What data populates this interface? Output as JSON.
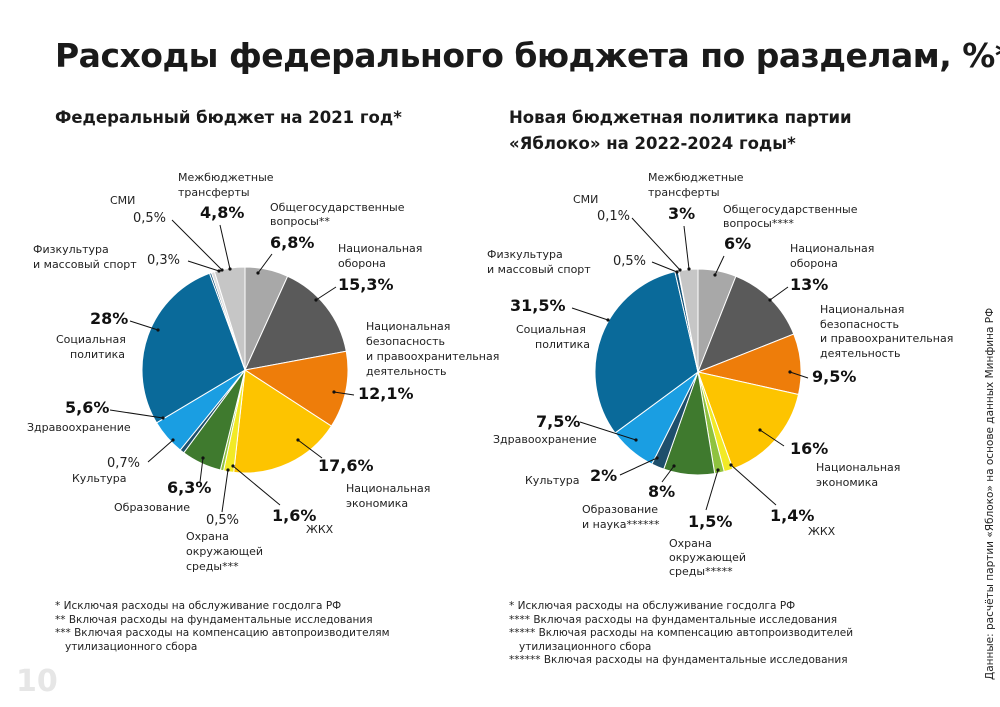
{
  "title": "Расходы федерального бюджета по разделам, %*",
  "page_number": "10",
  "source_note": "Данные: расчёты партии «Яблоко» на основе данных Минфина РФ",
  "charts": [
    {
      "subtitle_lines": [
        "Федеральный бюджет на 2021 год*"
      ],
      "footnotes": [
        "* Исключая расходы на обслуживание госдолга РФ",
        "** Включая расходы на фундаментальные исследования",
        "*** Включая расходы на компенсацию автопроизводителям",
        "утилизационного сбора"
      ]
    },
    {
      "subtitle_lines": [
        "Новая бюджетная политика партии",
        "«Яблоко» на 2022-2024 годы*"
      ],
      "footnotes": [
        "* Исключая расходы на обслуживание госдолга РФ",
        "**** Включая расходы на фундаментальные исследования",
        "***** Включая расходы на компенсацию автопроизводителей",
        "утилизационного сбора",
        "****** Включая расходы на фундаментальные исследования"
      ]
    }
  ],
  "chart_data": [
    {
      "type": "pie",
      "title": "Федеральный бюджет на 2021 год*",
      "slices": [
        {
          "label": "Общегосударственные вопросы**",
          "value": 6.8,
          "value_label": "6,8%",
          "color": "#a8a8a8"
        },
        {
          "label": "Национальная оборона",
          "value": 15.3,
          "value_label": "15,3%",
          "color": "#5a5a5a"
        },
        {
          "label": "Национальная безопасность и правоохранительная деятельность",
          "value": 12.1,
          "value_label": "12,1%",
          "color": "#ee7d0a"
        },
        {
          "label": "Национальная экономика",
          "value": 17.6,
          "value_label": "17,6%",
          "color": "#fdc400"
        },
        {
          "label": "ЖКХ",
          "value": 1.6,
          "value_label": "1,6%",
          "color": "#f2ea26"
        },
        {
          "label": "Охрана окружающей среды***",
          "value": 0.5,
          "value_label": "0,5%",
          "color": "#8fc23f"
        },
        {
          "label": "Образование",
          "value": 6.3,
          "value_label": "6,3%",
          "color": "#3f7a2e"
        },
        {
          "label": "Культура",
          "value": 0.7,
          "value_label": "0,7%",
          "color": "#1e4f6c"
        },
        {
          "label": "Здравоохранение",
          "value": 5.6,
          "value_label": "5,6%",
          "color": "#1a9ee2"
        },
        {
          "label": "Социальная политика",
          "value": 28,
          "value_label": "28%",
          "color": "#0a6a9a"
        },
        {
          "label": "Физкультура и массовый спорт",
          "value": 0.3,
          "value_label": "0,3%",
          "color": "#0d4f77"
        },
        {
          "label": "СМИ",
          "value": 0.5,
          "value_label": "0,5%",
          "color": "#dedede"
        },
        {
          "label": "Межбюджетные трансферты",
          "value": 4.8,
          "value_label": "4,8%",
          "color": "#c6c6c6"
        }
      ]
    },
    {
      "type": "pie",
      "title": "Новая бюджетная политика партии «Яблоко» на 2022-2024 годы*",
      "slices": [
        {
          "label": "Общегосударственные вопросы****",
          "value": 6,
          "value_label": "6%",
          "color": "#a8a8a8"
        },
        {
          "label": "Национальная оборона",
          "value": 13,
          "value_label": "13%",
          "color": "#5a5a5a"
        },
        {
          "label": "Национальная безопасность и правоохранительная деятельность",
          "value": 9.5,
          "value_label": "9,5%",
          "color": "#ee7d0a"
        },
        {
          "label": "Национальная экономика",
          "value": 16,
          "value_label": "16%",
          "color": "#fdc400"
        },
        {
          "label": "ЖКХ",
          "value": 1.4,
          "value_label": "1,4%",
          "color": "#f2ea26"
        },
        {
          "label": "Охрана окружающей среды*****",
          "value": 1.5,
          "value_label": "1,5%",
          "color": "#8fc23f"
        },
        {
          "label": "Образование и наука******",
          "value": 8,
          "value_label": "8%",
          "color": "#3f7a2e"
        },
        {
          "label": "Культура",
          "value": 2,
          "value_label": "2%",
          "color": "#1e4f6c"
        },
        {
          "label": "Здравоохранение",
          "value": 7.5,
          "value_label": "7,5%",
          "color": "#1a9ee2"
        },
        {
          "label": "Социальная политика",
          "value": 31.5,
          "value_label": "31,5%",
          "color": "#0a6a9a"
        },
        {
          "label": "Физкультура и массовый спорт",
          "value": 0.5,
          "value_label": "0,5%",
          "color": "#0d4f77"
        },
        {
          "label": "СМИ",
          "value": 0.1,
          "value_label": "0,1%",
          "color": "#dedede"
        },
        {
          "label": "Межбюджетные трансферты",
          "value": 3,
          "value_label": "3%",
          "color": "#c6c6c6"
        }
      ]
    }
  ]
}
